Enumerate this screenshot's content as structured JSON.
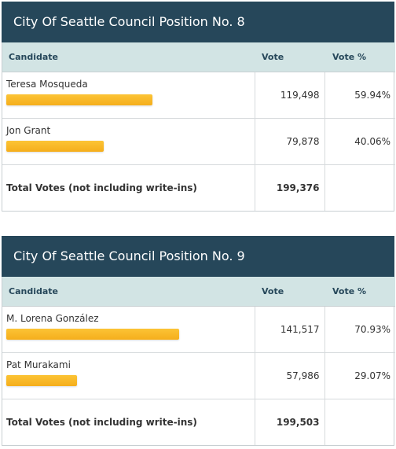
{
  "races": [
    {
      "title": "City Of Seattle Council Position No. 8",
      "headers": {
        "candidate": "Candidate",
        "vote": "Vote",
        "pct": "Vote %"
      },
      "candidates": [
        {
          "name": "Teresa Mosqueda",
          "vote": "119,498",
          "pct": "59.94%",
          "share": 0.5994
        },
        {
          "name": "Jon Grant",
          "vote": "79,878",
          "pct": "40.06%",
          "share": 0.4006
        }
      ],
      "total": {
        "label": "Total Votes (not including write-ins)",
        "vote": "199,376"
      }
    },
    {
      "title": "City Of Seattle Council Position No. 9",
      "headers": {
        "candidate": "Candidate",
        "vote": "Vote",
        "pct": "Vote %"
      },
      "candidates": [
        {
          "name": "M. Lorena González",
          "vote": "141,517",
          "pct": "70.93%",
          "share": 0.7093
        },
        {
          "name": "Pat Murakami",
          "vote": "57,986",
          "pct": "29.07%",
          "share": 0.2907
        }
      ],
      "total": {
        "label": "Total Votes (not including write-ins)",
        "vote": "199,503"
      }
    }
  ],
  "colors": {
    "header_bg": "#26475a",
    "column_header_bg": "#d2e4e4",
    "bar": "#f8b628"
  }
}
